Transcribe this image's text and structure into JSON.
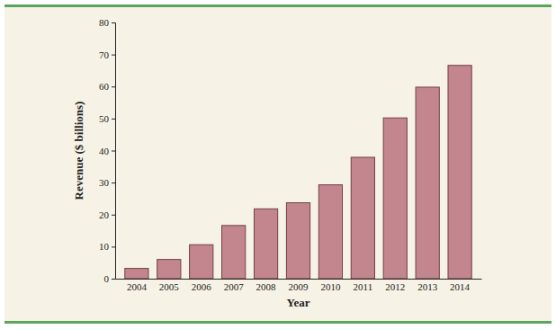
{
  "chart_data": {
    "type": "bar",
    "x_label": "Year",
    "y_label": "Revenue ($ billions)",
    "categories": [
      "2004",
      "2005",
      "2006",
      "2007",
      "2008",
      "2009",
      "2010",
      "2011",
      "2012",
      "2013",
      "2014"
    ],
    "values": [
      3.2,
      6.0,
      10.6,
      16.6,
      21.8,
      23.7,
      29.3,
      37.9,
      50.2,
      59.8,
      66.6
    ],
    "color": "#c4868e",
    "ylim": [
      0,
      80
    ],
    "yticks": [
      0,
      10,
      20,
      30,
      40,
      50,
      60,
      70,
      80
    ],
    "grid": false
  }
}
